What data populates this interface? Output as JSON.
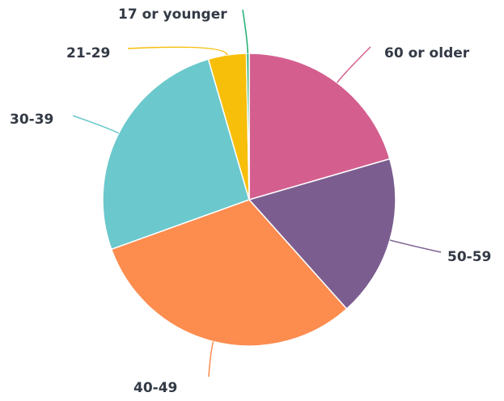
{
  "chart_data": {
    "type": "pie",
    "categories": [
      "60 or older",
      "50-59",
      "40-49",
      "30-39",
      "21-29",
      "17 or younger"
    ],
    "values": [
      20.5,
      17.9,
      31.1,
      26,
      4.2,
      0.3
    ],
    "colors": [
      "#d45f8f",
      "#7b5e8f",
      "#fd8c4f",
      "#6bc8cc",
      "#f7be0a",
      "#1fae73"
    ]
  }
}
